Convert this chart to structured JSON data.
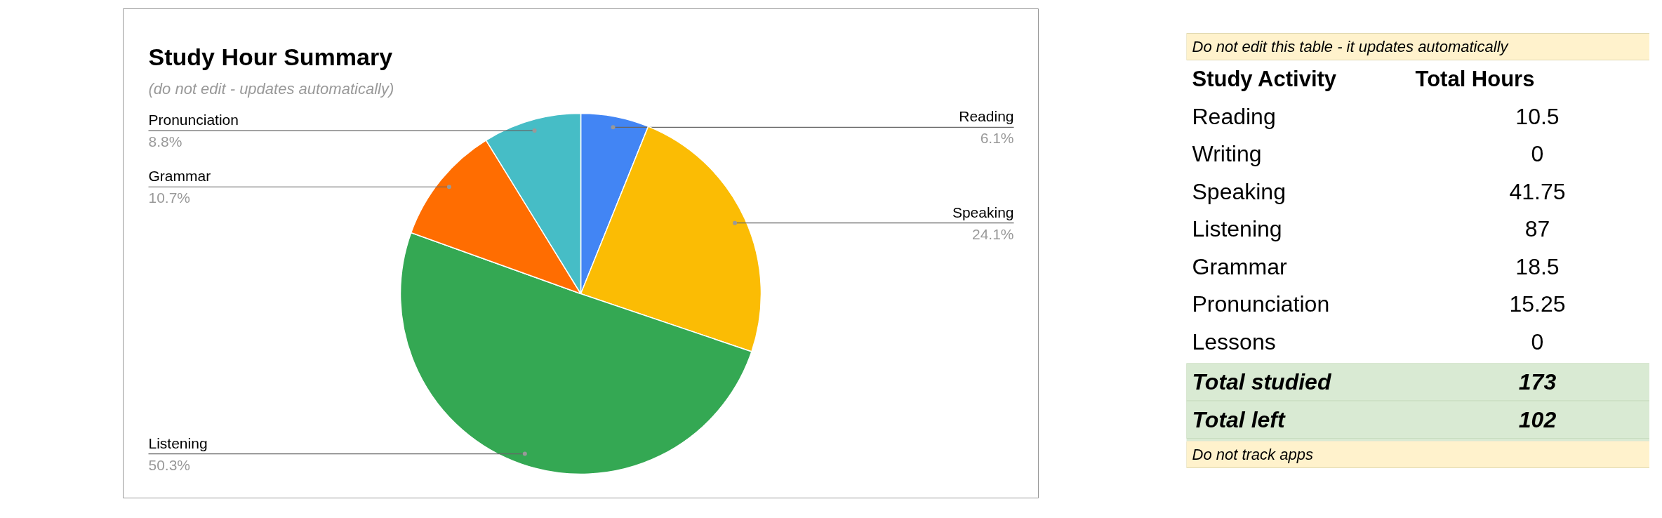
{
  "chart_data": [
    {
      "type": "pie",
      "title": "Study Hour Summary",
      "subtitle": "(do not edit - updates automatically)",
      "categories": [
        "Reading",
        "Speaking",
        "Listening",
        "Grammar",
        "Pronunciation"
      ],
      "values": [
        6.1,
        24.1,
        50.3,
        10.7,
        8.8
      ],
      "colors": [
        "#4285f4",
        "#fbbc04",
        "#34a853",
        "#ff6d01",
        "#46bdc6"
      ],
      "value_labels": [
        "6.1%",
        "24.1%",
        "50.3%",
        "10.7%",
        "8.8%"
      ]
    },
    {
      "type": "other",
      "xlabel": "Study Activity",
      "ylabel": "Total Hours",
      "categories": [
        "Reading",
        "Writing",
        "Speaking",
        "Listening",
        "Grammar",
        "Pronunciation",
        "Lessons"
      ],
      "values": [
        10.5,
        0,
        41.75,
        87,
        18.5,
        15.25,
        0
      ],
      "data_labels": true,
      "annotations": [
        "Do not edit this table - it updates automatically"
      ]
    },
    {
      "type": "other",
      "categories": [
        "Total studied",
        "Total left"
      ],
      "values": [
        173,
        102
      ],
      "colors": [
        "#d9ead3",
        "#d9ead3"
      ],
      "data_labels": true
    },
    {
      "type": "other",
      "annotations": [
        "Do not track apps"
      ]
    }
  ]
}
